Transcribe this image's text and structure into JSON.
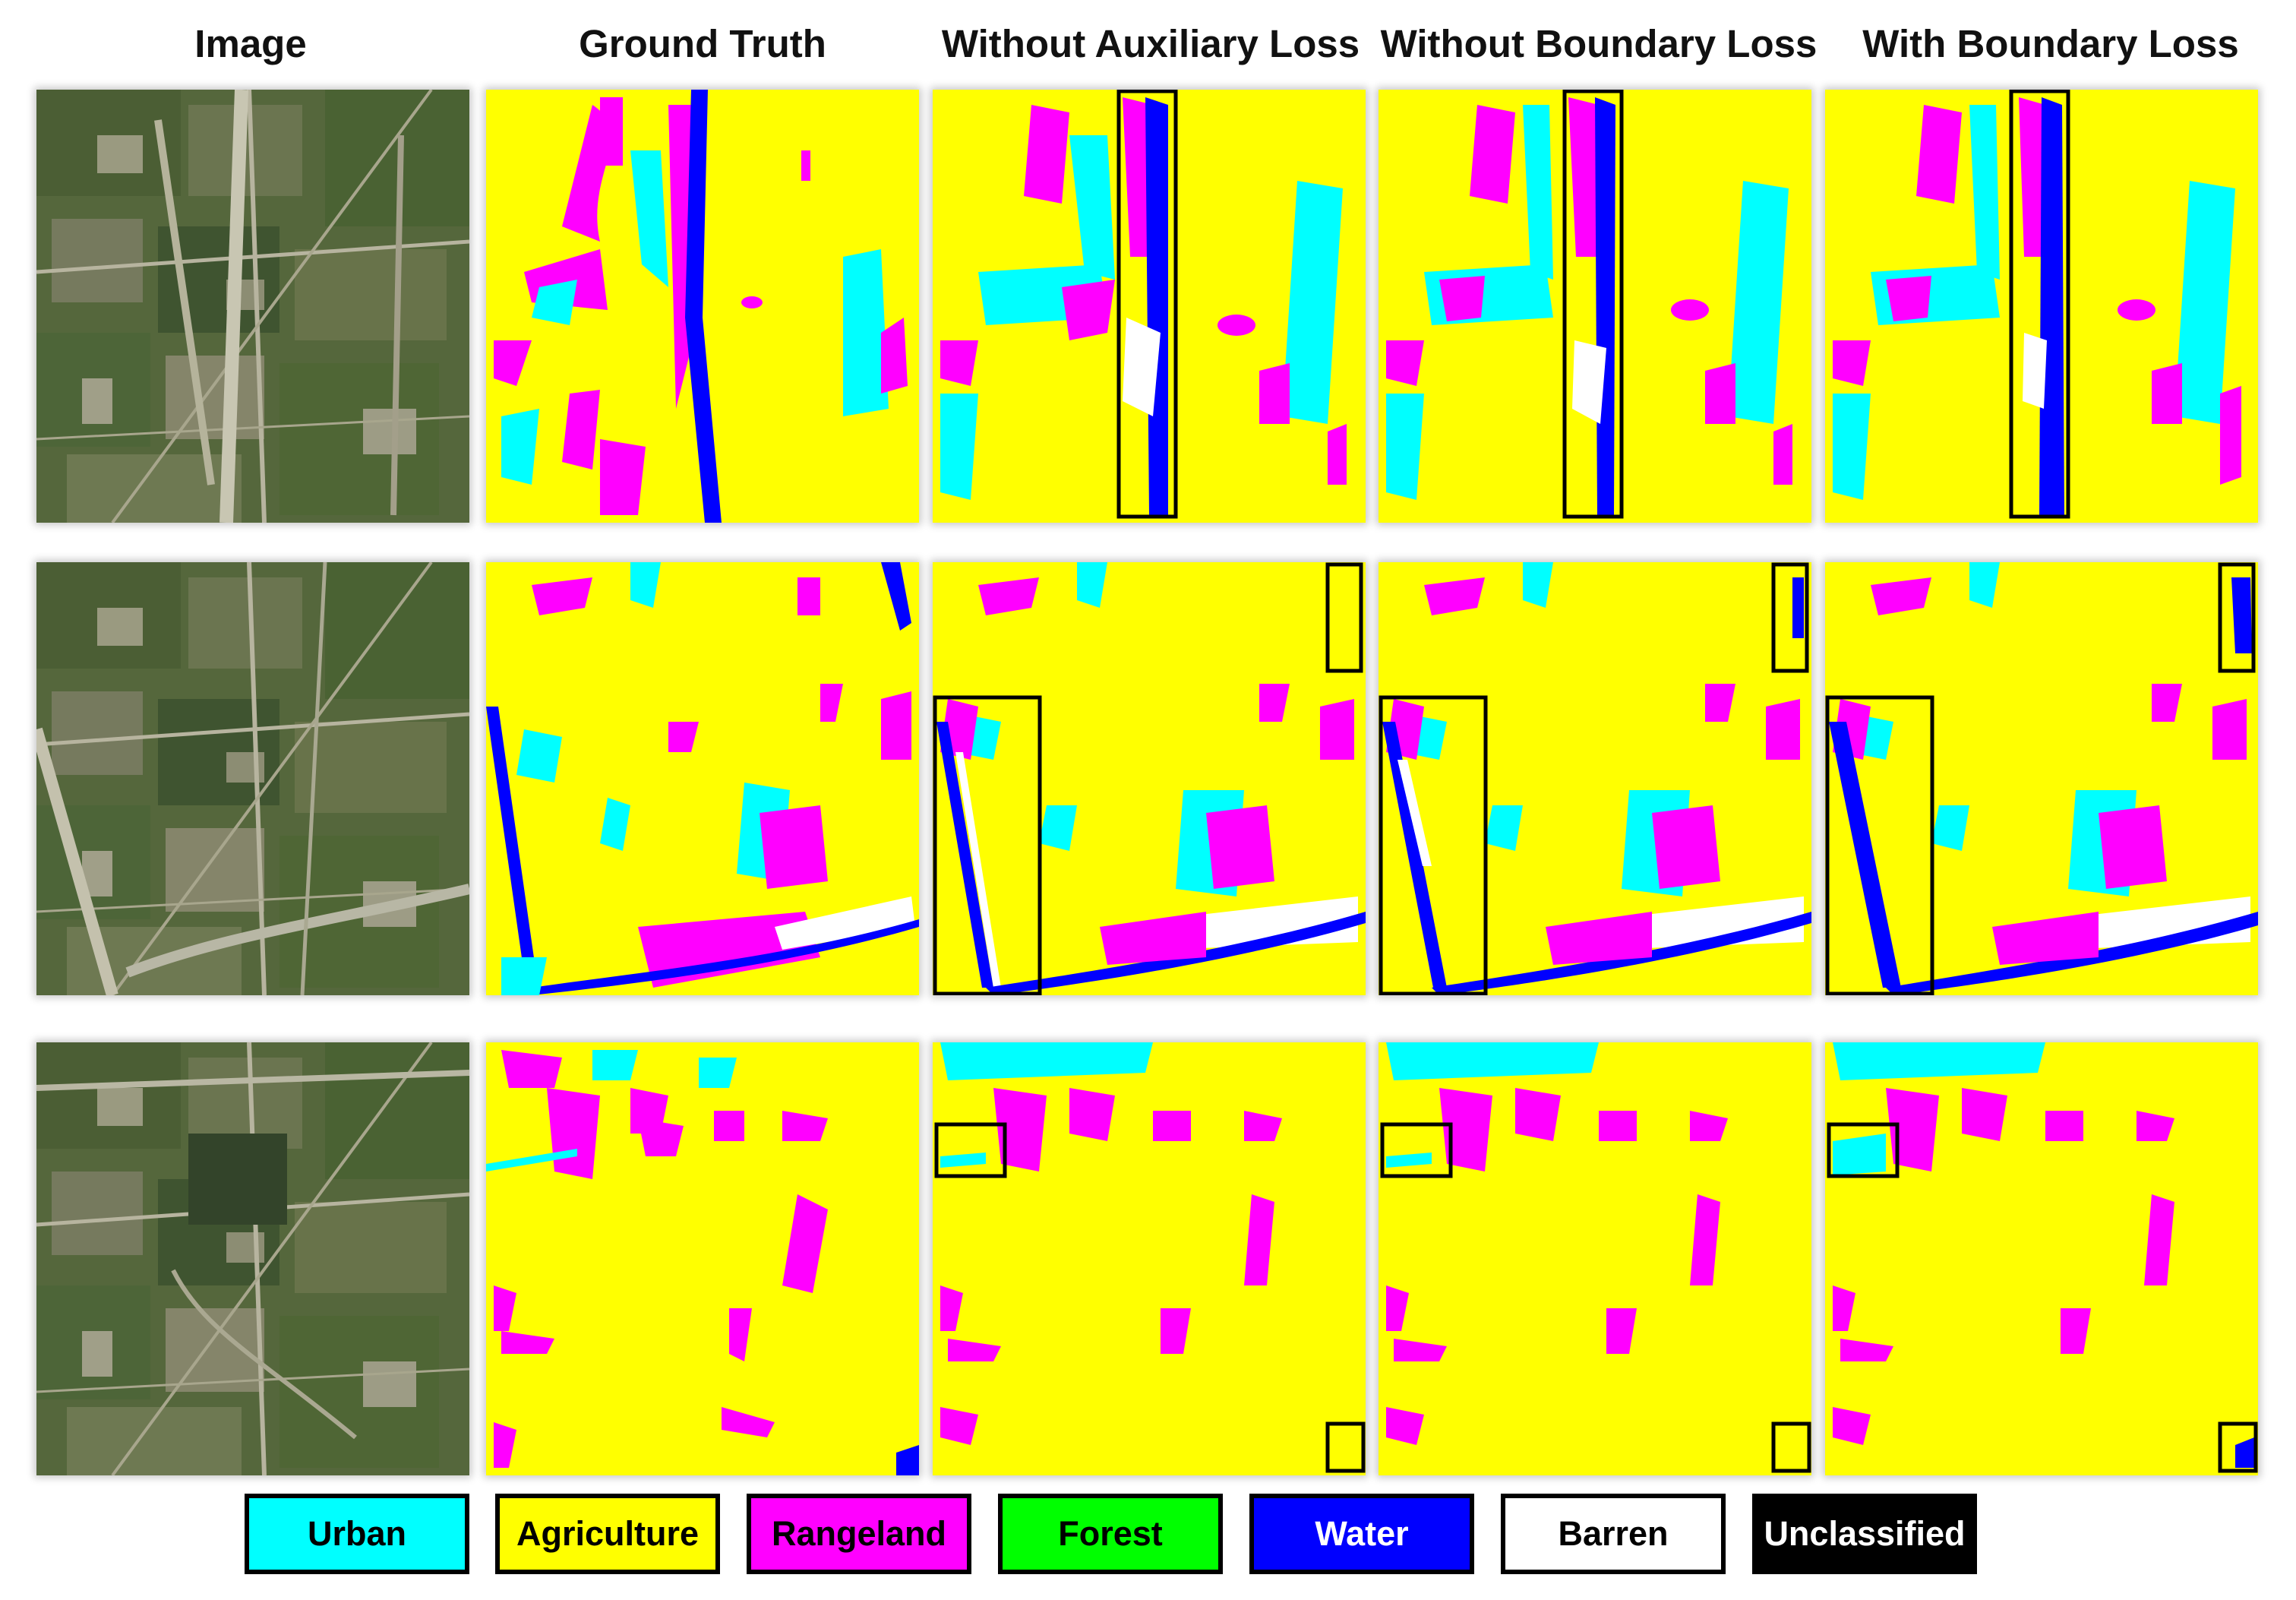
{
  "headers": {
    "image": "Image",
    "ground_truth": "Ground Truth",
    "without_auxiliary_loss": "Without Auxiliary Loss",
    "without_boundary_loss": "Without Boundary Loss",
    "with_boundary_loss": "With Boundary Loss"
  },
  "colors": {
    "urban": "#00ffff",
    "agriculture": "#ffff00",
    "rangeland": "#ff00ff",
    "forest": "#00ff00",
    "water": "#0000ff",
    "barren": "#ffffff",
    "unclassified": "#000000"
  },
  "legend": [
    {
      "label": "Urban",
      "color": "#00ffff",
      "text_color": "#000000"
    },
    {
      "label": "Agriculture",
      "color": "#ffff00",
      "text_color": "#000000"
    },
    {
      "label": "Rangeland",
      "color": "#ff00ff",
      "text_color": "#000000"
    },
    {
      "label": "Forest",
      "color": "#00ff00",
      "text_color": "#000000"
    },
    {
      "label": "Water",
      "color": "#0000ff",
      "text_color": "#ffffff"
    },
    {
      "label": "Barren",
      "color": "#ffffff",
      "text_color": "#000000"
    },
    {
      "label": "Unclassified",
      "color": "#000000",
      "text_color": "#ffffff"
    }
  ]
}
